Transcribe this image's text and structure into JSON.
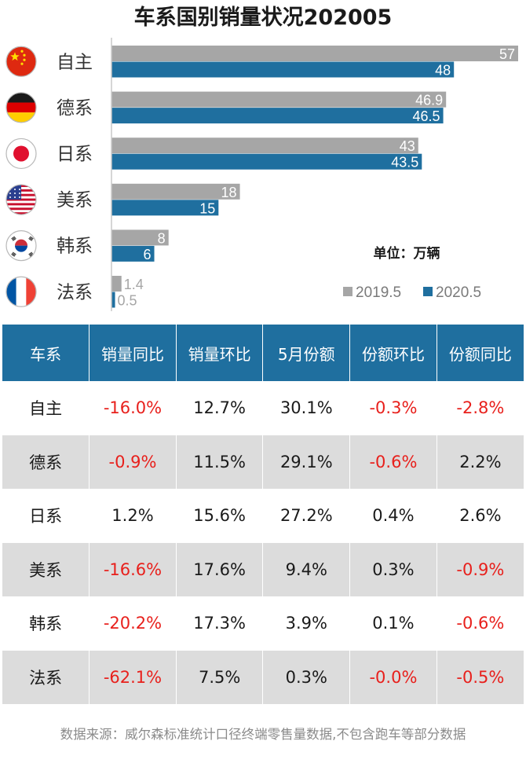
{
  "title": "车系国别销量状况202005",
  "chart_data": {
    "type": "bar",
    "orientation": "horizontal",
    "categories": [
      "自主",
      "德系",
      "日系",
      "美系",
      "韩系",
      "法系"
    ],
    "category_icons": [
      "china-flag-icon",
      "germany-flag-icon",
      "japan-flag-icon",
      "usa-flag-icon",
      "korea-flag-icon",
      "france-flag-icon"
    ],
    "series": [
      {
        "name": "2019.5",
        "values": [
          57,
          46.9,
          43,
          18,
          8,
          1.4
        ],
        "color": "#a6a6a6"
      },
      {
        "name": "2020.5",
        "values": [
          48,
          46.5,
          43.5,
          15,
          6,
          0.5
        ],
        "color": "#1f6f9f"
      }
    ],
    "unit_label": "单位：万辆",
    "legend_position": "bottom-right",
    "xlim": [
      0,
      57
    ],
    "grid": false
  },
  "table": {
    "headers": [
      "车系",
      "销量同比",
      "销量环比",
      "5月份额",
      "份额环比",
      "份额同比"
    ],
    "rows": [
      [
        "自主",
        "-16.0%",
        "12.7%",
        "30.1%",
        "-0.3%",
        "-2.8%"
      ],
      [
        "德系",
        "-0.9%",
        "11.5%",
        "29.1%",
        "-0.6%",
        "2.2%"
      ],
      [
        "日系",
        "1.2%",
        "15.6%",
        "27.2%",
        "0.4%",
        "2.6%"
      ],
      [
        "美系",
        "-16.6%",
        "17.6%",
        "9.4%",
        "0.3%",
        "-0.9%"
      ],
      [
        "韩系",
        "-20.2%",
        "17.3%",
        "3.9%",
        "0.1%",
        "-0.6%"
      ],
      [
        "法系",
        "-62.1%",
        "7.5%",
        "0.3%",
        "-0.0%",
        "-0.5%"
      ]
    ],
    "negative_color": "#e8201c",
    "header_color": "#1f6f9f"
  },
  "footnote": "数据来源：威尔森标准统计口径终端零售量数据,不包含跑车等部分数据"
}
